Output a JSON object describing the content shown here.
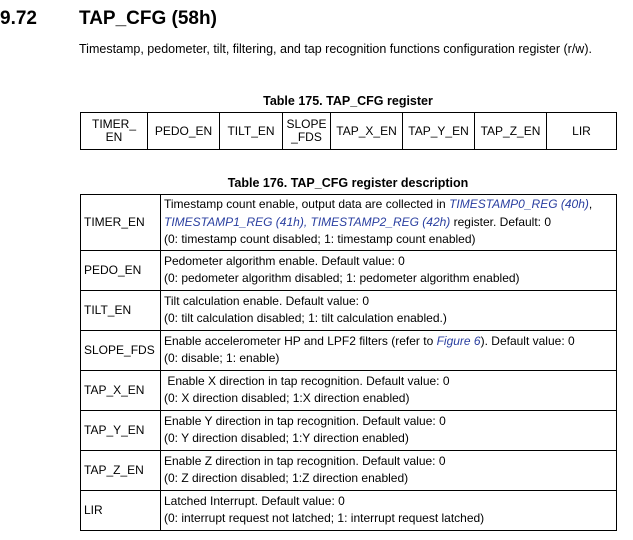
{
  "section": {
    "number": "9.72",
    "title": "TAP_CFG (58h)",
    "intro": "Timestamp, pedometer, tilt, filtering, and tap recognition functions configuration register (r/w)."
  },
  "register_table": {
    "caption": "Table 175. TAP_CFG register",
    "cells": [
      [
        "TIMER_",
        "EN"
      ],
      [
        "PEDO_EN"
      ],
      [
        "TILT_EN"
      ],
      [
        "SLOPE",
        "_FDS"
      ],
      [
        "TAP_X_EN"
      ],
      [
        "TAP_Y_EN"
      ],
      [
        "TAP_Z_EN"
      ],
      [
        "LIR"
      ]
    ]
  },
  "description_table": {
    "caption": "Table 176. TAP_CFG register description",
    "rows": [
      {
        "bit": "TIMER_EN",
        "line1_a": "Timestamp count enable, output data are collected in ",
        "line1_link": "TIMESTAMP0_REG (40h)",
        "line1_b": ",",
        "line2_link1": "TIMESTAMP1_REG (41h)",
        "line2_sep": ", ",
        "line2_link2": "TIMESTAMP2_REG (42h)",
        "line2_b": " register. Default: 0",
        "line3": "(0: timestamp count disabled; 1: timestamp count enabled)"
      },
      {
        "bit": "PEDO_EN",
        "line1": "Pedometer algorithm enable. Default value: 0",
        "line2": "(0: pedometer algorithm disabled; 1: pedometer algorithm enabled)"
      },
      {
        "bit": "TILT_EN",
        "line1": "Tilt calculation enable. Default value: 0",
        "line2": "(0: tilt calculation disabled; 1: tilt calculation enabled.)"
      },
      {
        "bit": "SLOPE_FDS",
        "line1_a": "Enable accelerometer HP and LPF2 filters (refer to ",
        "line1_link": "Figure 6",
        "line1_b": "). Default value: 0",
        "line2": "(0: disable; 1: enable)"
      },
      {
        "bit": "TAP_X_EN",
        "line1": " Enable X direction in tap recognition. Default value: 0",
        "line2": "(0: X direction disabled; 1:X direction enabled)"
      },
      {
        "bit": "TAP_Y_EN",
        "line1": "Enable Y direction in tap recognition. Default value: 0",
        "line2": "(0: Y direction disabled; 1:Y direction enabled)"
      },
      {
        "bit": "TAP_Z_EN",
        "line1": "Enable Z direction in tap recognition. Default value: 0",
        "line2": "(0: Z direction disabled; 1:Z direction enabled)"
      },
      {
        "bit": "LIR",
        "line1": "Latched Interrupt. Default value: 0",
        "line2": "(0: interrupt request not latched; 1: interrupt request latched)"
      }
    ]
  }
}
